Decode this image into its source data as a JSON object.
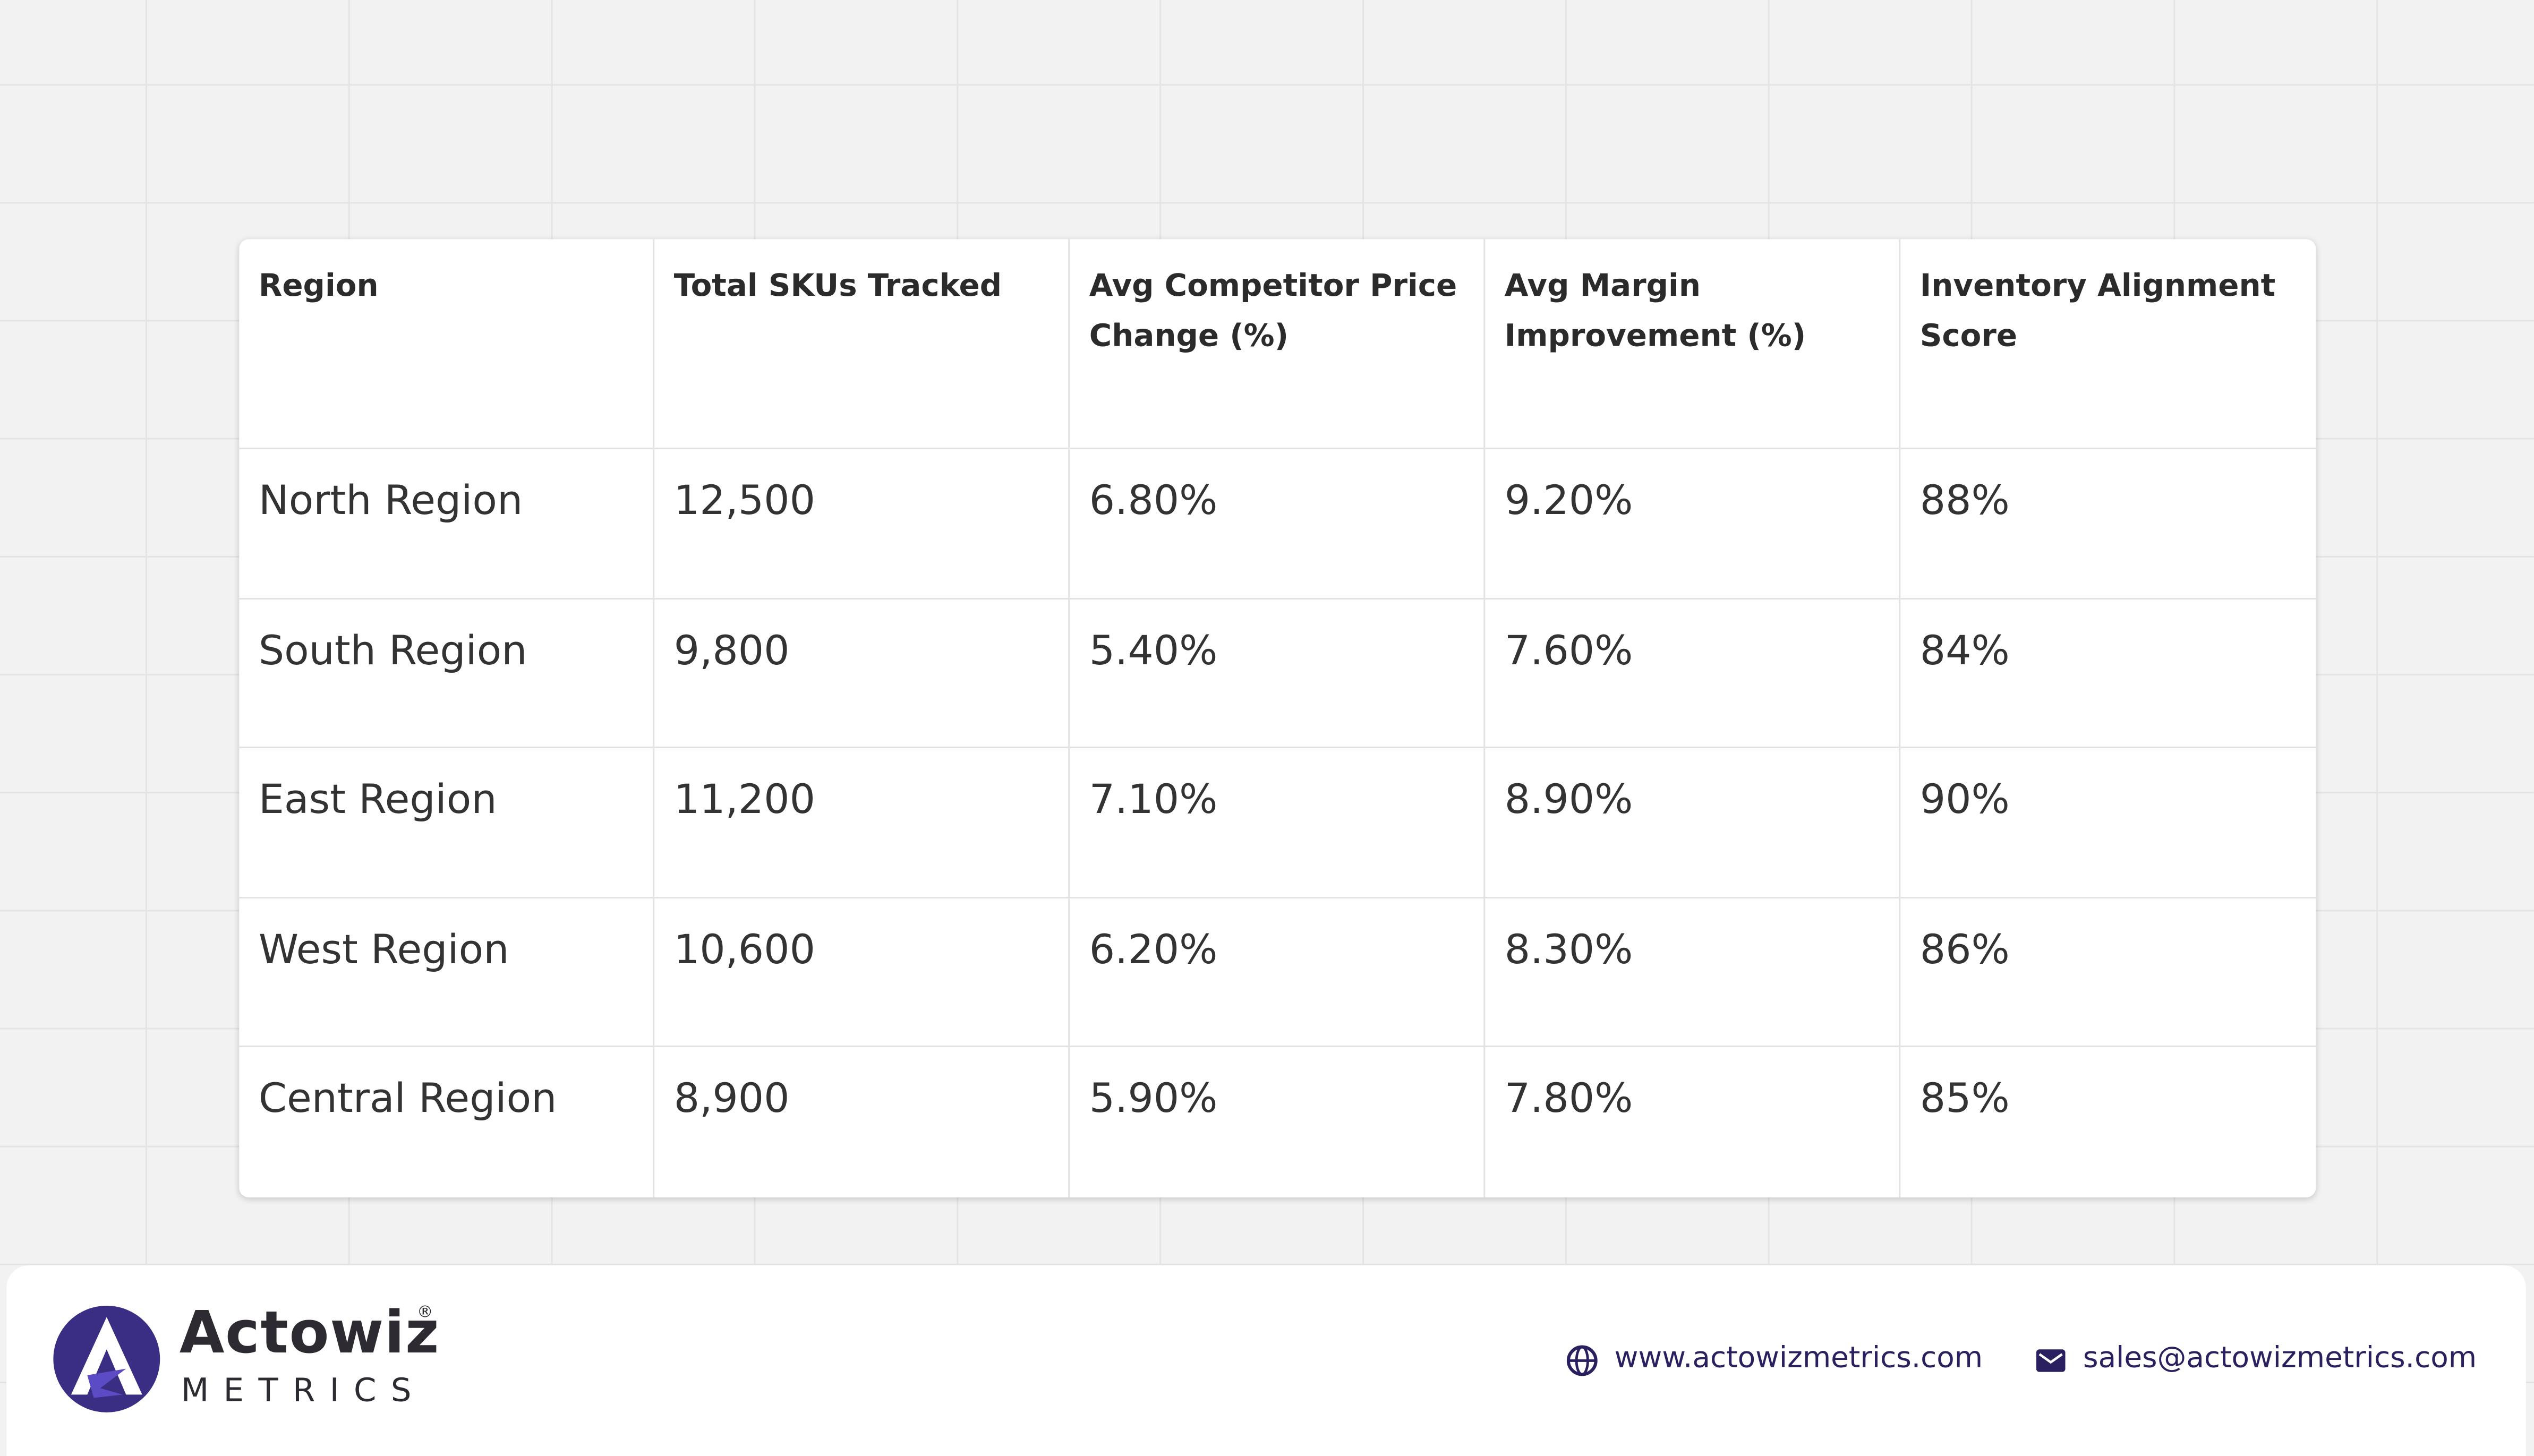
{
  "table": {
    "header": [
      "Region",
      "Total SKUs Tracked",
      "Avg Competitor Price Change (%)",
      "Avg Margin Improvement (%)",
      "Inventory Alignment Score"
    ],
    "rows": [
      [
        "North Region",
        "12,500",
        "6.80%",
        "9.20%",
        "88%"
      ],
      [
        "South Region",
        "9,800",
        "5.40%",
        "7.60%",
        "84%"
      ],
      [
        "East Region",
        "11,200",
        "7.10%",
        "8.90%",
        "90%"
      ],
      [
        "West Region",
        "10,600",
        "6.20%",
        "8.30%",
        "86%"
      ],
      [
        "Central Region",
        "8,900",
        "5.90%",
        "7.80%",
        "85%"
      ]
    ]
  },
  "footer": {
    "brand": "Actowiz",
    "brand_sub": "METRICS",
    "registered": "®",
    "website": "www.actowizmetrics.com",
    "email": "sales@actowizmetrics.com"
  }
}
